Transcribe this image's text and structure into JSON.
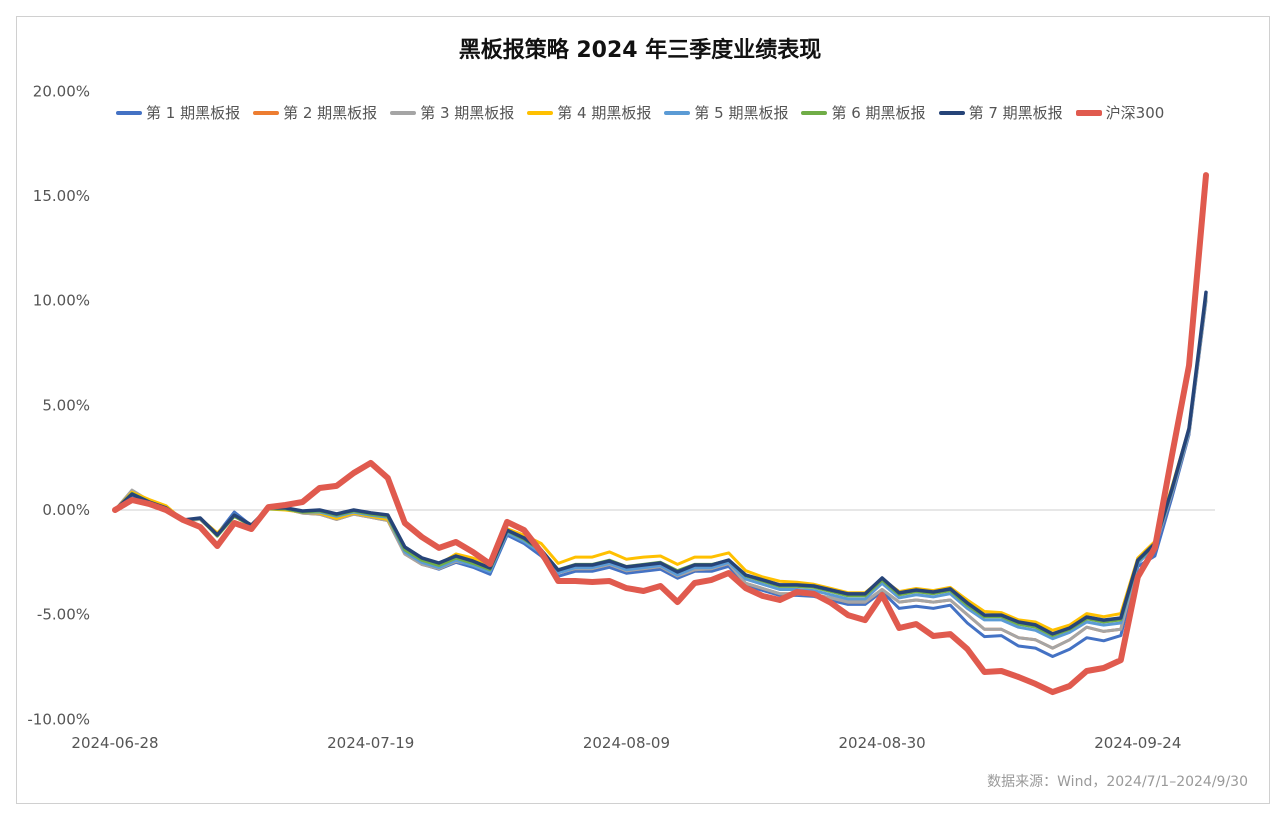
{
  "chart_data": {
    "type": "line",
    "title": "黑板报策略 2024 年三季度业绩表现",
    "xlabel": "",
    "ylabel": "",
    "ylim": [
      -10,
      20
    ],
    "y_ticks": [
      "20.00%",
      "15.00%",
      "10.00%",
      "5.00%",
      "0.00%",
      "-5.00%",
      "-10.00%"
    ],
    "y_tick_values": [
      20,
      15,
      10,
      5,
      0,
      -5,
      -10
    ],
    "n_points": 65,
    "x_ticks": [
      {
        "index": 0,
        "label": "2024-06-28"
      },
      {
        "index": 15,
        "label": "2024-07-19"
      },
      {
        "index": 30,
        "label": "2024-08-09"
      },
      {
        "index": 45,
        "label": "2024-08-30"
      },
      {
        "index": 60,
        "label": "2024-09-24"
      }
    ],
    "grid": "zero-line only",
    "legend_position": "top",
    "source": "数据来源：Wind，2024/7/1–2024/9/30",
    "series": [
      {
        "name": "第 1 期黑板报",
        "color": "#4472C4",
        "width": 3,
        "values": [
          0,
          0.7,
          0.35,
          0.05,
          -0.5,
          -0.4,
          -1.15,
          -0.1,
          -0.75,
          0.05,
          0.05,
          -0.1,
          -0.05,
          -0.3,
          -0.1,
          -0.25,
          -0.4,
          -2.07,
          -2.59,
          -2.83,
          -2.5,
          -2.74,
          -3.07,
          -1.2,
          -1.6,
          -2.2,
          -3.17,
          -2.93,
          -2.93,
          -2.74,
          -3.02,
          -2.93,
          -2.83,
          -3.26,
          -2.93,
          -2.93,
          -2.69,
          -3.61,
          -3.84,
          -4.08,
          -4.08,
          -4.13,
          -4.32,
          -4.51,
          -4.51,
          -3.9,
          -4.7,
          -4.6,
          -4.7,
          -4.55,
          -5.4,
          -6.05,
          -6.0,
          -6.5,
          -6.6,
          -7.0,
          -6.65,
          -6.1,
          -6.25,
          -6.0,
          -2.7,
          -2.2,
          0.6,
          3.6,
          10.0
        ]
      },
      {
        "name": "第 2 期黑板报",
        "color": "#ED7D31",
        "width": 3,
        "values": [
          0,
          0.9,
          0.45,
          0.1,
          -0.5,
          -0.45,
          -1.2,
          -0.3,
          -0.75,
          0.05,
          0.05,
          -0.15,
          -0.2,
          -0.45,
          -0.2,
          -0.35,
          -0.5,
          -2.1,
          -2.6,
          -2.8,
          -2.45,
          -2.6,
          -2.9,
          -1.1,
          -1.4,
          -2.05,
          -3.0,
          -2.8,
          -2.8,
          -2.6,
          -2.9,
          -2.8,
          -2.7,
          -3.15,
          -2.85,
          -2.8,
          -2.55,
          -3.5,
          -3.75,
          -4.0,
          -4.0,
          -4.05,
          -4.2,
          -4.4,
          -4.4,
          -3.8,
          -4.4,
          -4.3,
          -4.4,
          -4.3,
          -5.0,
          -5.7,
          -5.7,
          -6.1,
          -6.2,
          -6.6,
          -6.2,
          -5.6,
          -5.8,
          -5.7,
          -2.5,
          -1.8,
          0.8,
          3.7,
          10.1
        ]
      },
      {
        "name": "第 3 期黑板报",
        "color": "#A5A5A5",
        "width": 3,
        "values": [
          0,
          0.95,
          0.45,
          0.1,
          -0.5,
          -0.45,
          -1.2,
          -0.3,
          -0.75,
          0.05,
          0.05,
          -0.15,
          -0.2,
          -0.45,
          -0.2,
          -0.35,
          -0.5,
          -2.1,
          -2.6,
          -2.8,
          -2.45,
          -2.6,
          -2.9,
          -1.1,
          -1.4,
          -2.05,
          -3.0,
          -2.8,
          -2.8,
          -2.6,
          -2.9,
          -2.8,
          -2.7,
          -3.15,
          -2.85,
          -2.8,
          -2.55,
          -3.5,
          -3.75,
          -4.0,
          -4.0,
          -4.05,
          -4.2,
          -4.4,
          -4.4,
          -3.8,
          -4.4,
          -4.3,
          -4.4,
          -4.3,
          -5.0,
          -5.7,
          -5.7,
          -6.1,
          -6.2,
          -6.6,
          -6.2,
          -5.6,
          -5.8,
          -5.7,
          -2.5,
          -1.8,
          0.8,
          3.7,
          10.1
        ]
      },
      {
        "name": "第 4 期黑板报",
        "color": "#FFC000",
        "width": 3,
        "values": [
          0,
          0.85,
          0.5,
          0.2,
          -0.5,
          -0.4,
          -1.1,
          -0.3,
          -0.7,
          0.05,
          0,
          -0.1,
          -0.15,
          -0.4,
          -0.15,
          -0.3,
          -0.45,
          -1.9,
          -2.4,
          -2.6,
          -2.1,
          -2.3,
          -2.6,
          -0.9,
          -1.2,
          -1.6,
          -2.55,
          -2.25,
          -2.25,
          -2.0,
          -2.35,
          -2.25,
          -2.2,
          -2.6,
          -2.25,
          -2.25,
          -2.05,
          -2.9,
          -3.2,
          -3.4,
          -3.45,
          -3.55,
          -3.75,
          -3.95,
          -3.95,
          -3.3,
          -3.9,
          -3.75,
          -3.85,
          -3.7,
          -4.3,
          -4.85,
          -4.9,
          -5.25,
          -5.35,
          -5.75,
          -5.5,
          -4.95,
          -5.1,
          -4.95,
          -2.3,
          -1.5,
          1.1,
          3.9,
          10.3
        ]
      },
      {
        "name": "第 5 期黑板报",
        "color": "#5B9BD5",
        "width": 3,
        "values": [
          0,
          0.75,
          0.35,
          0.05,
          -0.5,
          -0.4,
          -1.2,
          -0.2,
          -0.75,
          0.05,
          0.05,
          -0.1,
          -0.1,
          -0.3,
          -0.1,
          -0.25,
          -0.35,
          -2.0,
          -2.5,
          -2.75,
          -2.4,
          -2.65,
          -2.95,
          -1.1,
          -1.5,
          -2.05,
          -3.0,
          -2.75,
          -2.75,
          -2.55,
          -2.85,
          -2.75,
          -2.65,
          -3.1,
          -2.75,
          -2.75,
          -2.5,
          -3.3,
          -3.55,
          -3.8,
          -3.8,
          -3.85,
          -4.05,
          -4.25,
          -4.25,
          -3.5,
          -4.2,
          -4.05,
          -4.15,
          -4.0,
          -4.7,
          -5.25,
          -5.25,
          -5.6,
          -5.75,
          -6.15,
          -5.85,
          -5.35,
          -5.5,
          -5.4,
          -2.55,
          -1.75,
          0.85,
          3.75,
          10.2
        ]
      },
      {
        "name": "第 6 期黑板报",
        "color": "#70AD47",
        "width": 3,
        "values": [
          0,
          0.8,
          0.4,
          0.1,
          -0.5,
          -0.4,
          -1.25,
          -0.3,
          -0.75,
          0.05,
          0.05,
          -0.1,
          -0.05,
          -0.25,
          -0.05,
          -0.2,
          -0.3,
          -1.9,
          -2.4,
          -2.65,
          -2.3,
          -2.55,
          -2.85,
          -1.0,
          -1.4,
          -1.95,
          -2.85,
          -2.6,
          -2.6,
          -2.4,
          -2.7,
          -2.6,
          -2.5,
          -2.9,
          -2.6,
          -2.6,
          -2.4,
          -3.15,
          -3.4,
          -3.65,
          -3.65,
          -3.7,
          -3.9,
          -4.1,
          -4.1,
          -3.35,
          -4.05,
          -3.9,
          -4.0,
          -3.85,
          -4.55,
          -5.1,
          -5.1,
          -5.45,
          -5.6,
          -6.0,
          -5.7,
          -5.2,
          -5.35,
          -5.25,
          -2.45,
          -1.65,
          0.95,
          3.85,
          10.3
        ]
      },
      {
        "name": "第 7 期黑板报",
        "color": "#264478",
        "width": 3.5,
        "values": [
          0,
          0.76,
          0.38,
          0.1,
          -0.48,
          -0.38,
          -1.19,
          -0.24,
          -0.72,
          0.1,
          0.1,
          -0.05,
          0,
          -0.19,
          0,
          -0.14,
          -0.24,
          -1.77,
          -2.29,
          -2.53,
          -2.2,
          -2.44,
          -2.77,
          -0.96,
          -1.34,
          -1.91,
          -2.87,
          -2.63,
          -2.63,
          -2.44,
          -2.72,
          -2.63,
          -2.53,
          -2.96,
          -2.63,
          -2.63,
          -2.39,
          -3.11,
          -3.34,
          -3.58,
          -3.58,
          -3.63,
          -3.82,
          -4.01,
          -4.01,
          -3.25,
          -3.96,
          -3.82,
          -3.92,
          -3.77,
          -4.44,
          -5.02,
          -5.02,
          -5.35,
          -5.49,
          -5.92,
          -5.64,
          -5.11,
          -5.26,
          -5.16,
          -2.4,
          -1.6,
          1.0,
          3.9,
          10.4
        ]
      },
      {
        "name": "沪深300",
        "color": "#E05A4E",
        "width": 6,
        "values": [
          0,
          0.48,
          0.29,
          0,
          -0.48,
          -0.81,
          -1.72,
          -0.62,
          -0.91,
          0.14,
          0.24,
          0.38,
          1.05,
          1.15,
          1.77,
          2.25,
          1.53,
          -0.62,
          -1.29,
          -1.81,
          -1.53,
          -2.01,
          -2.58,
          -0.57,
          -0.96,
          -2.01,
          -3.39,
          -3.39,
          -3.44,
          -3.39,
          -3.73,
          -3.87,
          -3.63,
          -4.4,
          -3.49,
          -3.34,
          -3.01,
          -3.73,
          -4.11,
          -4.3,
          -3.92,
          -4.01,
          -4.44,
          -5.02,
          -5.26,
          -4.06,
          -5.64,
          -5.45,
          -6.02,
          -5.93,
          -6.64,
          -7.74,
          -7.69,
          -7.98,
          -8.31,
          -8.7,
          -8.41,
          -7.69,
          -7.55,
          -7.17,
          -3.2,
          -1.8,
          2.6,
          6.9,
          16.0
        ]
      }
    ]
  }
}
